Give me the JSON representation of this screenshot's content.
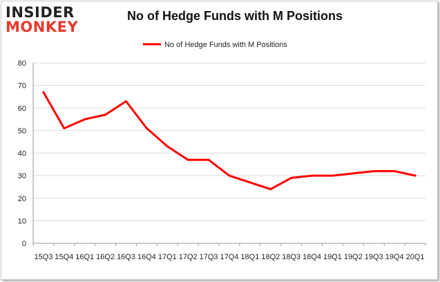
{
  "brand": {
    "line1": "INSIDER",
    "line2": "MONKEY"
  },
  "chart_data": {
    "type": "line",
    "title": "No of Hedge Funds with M Positions",
    "xlabel": "",
    "ylabel": "",
    "categories": [
      "15Q3",
      "15Q4",
      "16Q1",
      "16Q2",
      "16Q3",
      "16Q4",
      "17Q1",
      "17Q2",
      "17Q3",
      "17Q4",
      "18Q1",
      "18Q2",
      "18Q3",
      "18Q4",
      "19Q1",
      "19Q2",
      "19Q3",
      "19Q4",
      "20Q1"
    ],
    "series": [
      {
        "name": "No of Hedge Funds with M Positions",
        "color": "#ff0000",
        "values": [
          67,
          51,
          55,
          57,
          63,
          51,
          43,
          37,
          37,
          30,
          27,
          24,
          29,
          30,
          30,
          31,
          32,
          32,
          30
        ]
      }
    ],
    "ylim": [
      0,
      80
    ],
    "yticks": [
      0,
      10,
      20,
      30,
      40,
      50,
      60,
      70,
      80
    ],
    "grid": true,
    "legend": "top-center"
  }
}
